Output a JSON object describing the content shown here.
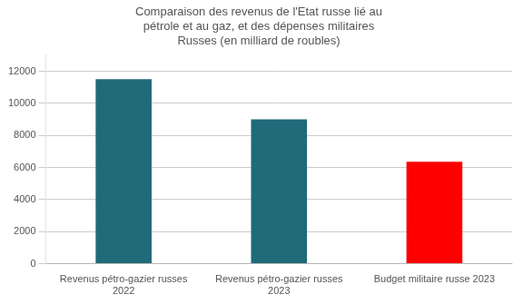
{
  "chart_data": {
    "type": "bar",
    "title": "Comparaison des revenus de l'Etat russe lié au\npétrole et au gaz, et des dépenses militaires\nRusses (en milliard de roubles)",
    "categories": [
      "Revenus pétro-gazier russes\n2022",
      "Revenus pétro-gazier russes\n2023",
      "Budget militaire russe 2023"
    ],
    "values": [
      11500,
      9000,
      6350
    ],
    "colors": [
      "#1f6b7a",
      "#1f6b7a",
      "#ff0000"
    ],
    "ylim": [
      0,
      13000
    ],
    "yticks": [
      0,
      2000,
      4000,
      6000,
      8000,
      10000,
      12000
    ],
    "grid": true
  }
}
